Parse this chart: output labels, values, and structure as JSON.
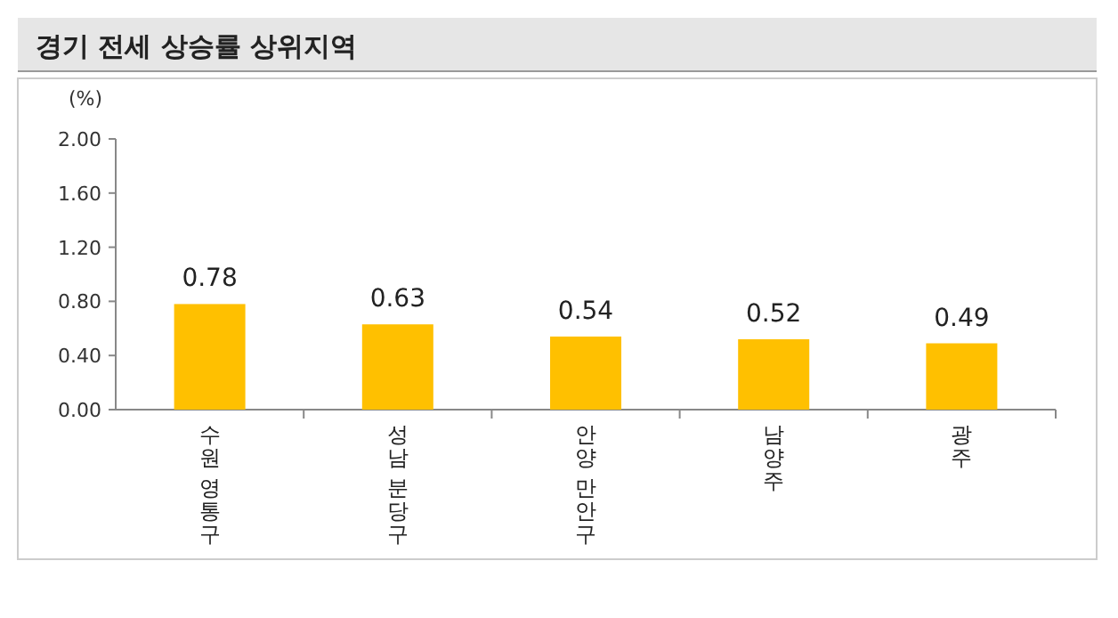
{
  "chart_data": {
    "type": "bar",
    "title": "경기 전세 상승률 상위지역",
    "ylabel": "(%)",
    "categories": [
      "수원 영통구",
      "성남 분당구",
      "안양 만안구",
      "남양주",
      "광주"
    ],
    "values": [
      0.78,
      0.63,
      0.54,
      0.52,
      0.49
    ],
    "color": "#ffc000",
    "data_labels": true,
    "grid": false,
    "ylim": [
      0,
      2
    ],
    "yticks": [
      {
        "value": 0,
        "label": "0.00"
      },
      {
        "value": 0.4,
        "label": "0.40"
      },
      {
        "value": 0.8,
        "label": "0.80"
      },
      {
        "value": 1.2,
        "label": "1.20"
      },
      {
        "value": 1.6,
        "label": "1.60"
      },
      {
        "value": 2,
        "label": "2.00"
      }
    ]
  }
}
